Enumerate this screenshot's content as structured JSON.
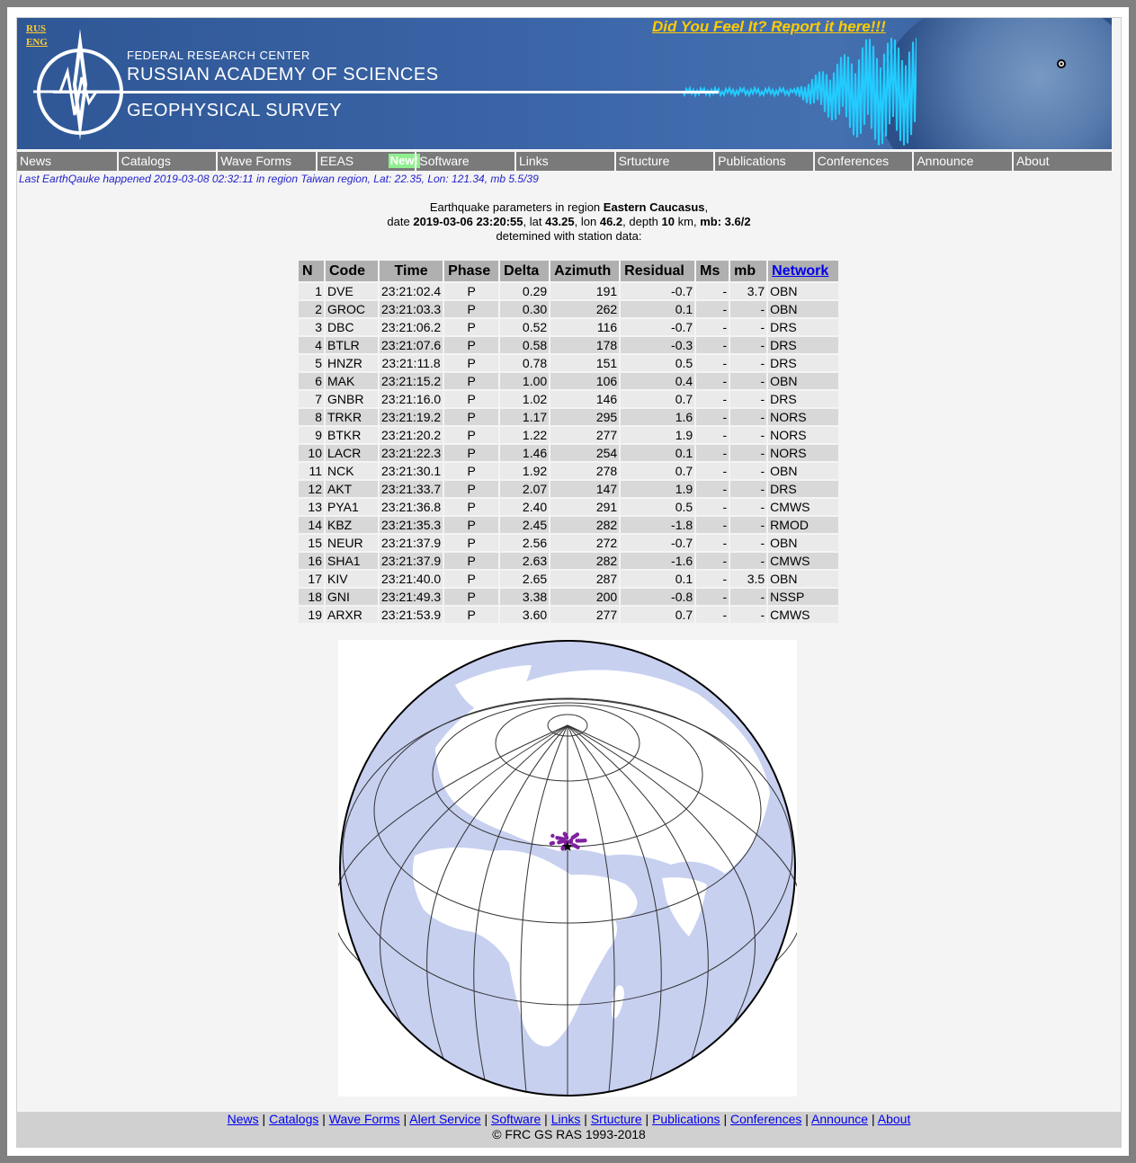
{
  "banner": {
    "lang_rus": "RUS",
    "lang_eng": "ENG",
    "title_line1": "FEDERAL RESEARCH CENTER",
    "title_line2": "RUSSIAN ACADEMY OF SCIENCES",
    "title_line3": "GEOPHYSICAL SURVEY",
    "feel_link": "Did You Feel It? Report it here!!!"
  },
  "nav": {
    "items": [
      "News",
      "Catalogs",
      "Wave Forms",
      "EEAS",
      "Software",
      "Links",
      "Srtucture",
      "Publications",
      "Conferences",
      "Announce",
      "About"
    ],
    "new_badge": "New!"
  },
  "last_eq": "Last EarthQauke happened 2019-03-08 02:32:11 in region Taiwan region, Lat: 22.35, Lon: 121.34, mb 5.5/39",
  "params": {
    "intro": "Earthquake parameters in region",
    "region": "Eastern Caucasus",
    "date_label": "date",
    "date": "2019-03-06 23:20:55",
    "lat_label": ", lat",
    "lat": "43.25",
    "lon_label": ", lon",
    "lon": "46.2",
    "depth_label": ", depth",
    "depth": "10",
    "depth_unit": "km,",
    "mb_label": "mb: 3.6/2",
    "footer": "detemined with station data:"
  },
  "table": {
    "headers": [
      "N",
      "Code",
      "Time",
      "Phase",
      "Delta",
      "Azimuth",
      "Residual",
      "Ms",
      "mb",
      "Network"
    ],
    "rows": [
      [
        "1",
        "DVE",
        "23:21:02.4",
        "P",
        "0.29",
        "191",
        "-0.7",
        "-",
        "3.7",
        "OBN"
      ],
      [
        "2",
        "GROC",
        "23:21:03.3",
        "P",
        "0.30",
        "262",
        "0.1",
        "-",
        "-",
        "OBN"
      ],
      [
        "3",
        "DBC",
        "23:21:06.2",
        "P",
        "0.52",
        "116",
        "-0.7",
        "-",
        "-",
        "DRS"
      ],
      [
        "4",
        "BTLR",
        "23:21:07.6",
        "P",
        "0.58",
        "178",
        "-0.3",
        "-",
        "-",
        "DRS"
      ],
      [
        "5",
        "HNZR",
        "23:21:11.8",
        "P",
        "0.78",
        "151",
        "0.5",
        "-",
        "-",
        "DRS"
      ],
      [
        "6",
        "MAK",
        "23:21:15.2",
        "P",
        "1.00",
        "106",
        "0.4",
        "-",
        "-",
        "OBN"
      ],
      [
        "7",
        "GNBR",
        "23:21:16.0",
        "P",
        "1.02",
        "146",
        "0.7",
        "-",
        "-",
        "DRS"
      ],
      [
        "8",
        "TRKR",
        "23:21:19.2",
        "P",
        "1.17",
        "295",
        "1.6",
        "-",
        "-",
        "NORS"
      ],
      [
        "9",
        "BTKR",
        "23:21:20.2",
        "P",
        "1.22",
        "277",
        "1.9",
        "-",
        "-",
        "NORS"
      ],
      [
        "10",
        "LACR",
        "23:21:22.3",
        "P",
        "1.46",
        "254",
        "0.1",
        "-",
        "-",
        "NORS"
      ],
      [
        "11",
        "NCK",
        "23:21:30.1",
        "P",
        "1.92",
        "278",
        "0.7",
        "-",
        "-",
        "OBN"
      ],
      [
        "12",
        "AKT",
        "23:21:33.7",
        "P",
        "2.07",
        "147",
        "1.9",
        "-",
        "-",
        "DRS"
      ],
      [
        "13",
        "PYA1",
        "23:21:36.8",
        "P",
        "2.40",
        "291",
        "0.5",
        "-",
        "-",
        "CMWS"
      ],
      [
        "14",
        "KBZ",
        "23:21:35.3",
        "P",
        "2.45",
        "282",
        "-1.8",
        "-",
        "-",
        "RMOD"
      ],
      [
        "15",
        "NEUR",
        "23:21:37.9",
        "P",
        "2.56",
        "272",
        "-0.7",
        "-",
        "-",
        "OBN"
      ],
      [
        "16",
        "SHA1",
        "23:21:37.9",
        "P",
        "2.63",
        "282",
        "-1.6",
        "-",
        "-",
        "CMWS"
      ],
      [
        "17",
        "KIV",
        "23:21:40.0",
        "P",
        "2.65",
        "287",
        "0.1",
        "-",
        "3.5",
        "OBN"
      ],
      [
        "18",
        "GNI",
        "23:21:49.3",
        "P",
        "3.38",
        "200",
        "-0.8",
        "-",
        "-",
        "NSSP"
      ],
      [
        "19",
        "ARXR",
        "23:21:53.9",
        "P",
        "3.60",
        "277",
        "0.7",
        "-",
        "-",
        "CMWS"
      ]
    ]
  },
  "footer": {
    "links": [
      "News",
      "Catalogs",
      "Wave Forms",
      "Alert Service",
      "Software",
      "Links",
      "Srtucture",
      "Publications",
      "Conferences",
      "Announce",
      "About"
    ],
    "copyright": "© FRC GS RAS 1993-2018"
  },
  "colors": {
    "ocean": "#c8d0f0",
    "land": "#ffffff",
    "border": "#e8a070",
    "station": "#8020a0",
    "epicenter": "#000000"
  }
}
